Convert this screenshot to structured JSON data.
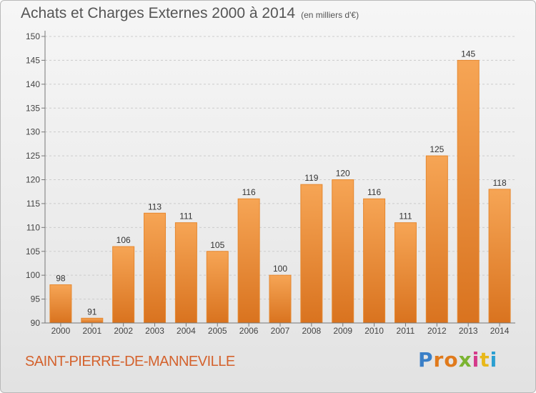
{
  "title": "Achats et Charges Externes 2000 à 2014",
  "subtitle": "(en milliers d'€)",
  "place": "SAINT-PIERRE-DE-MANNEVILLE",
  "logo": {
    "text": "Proxiti",
    "letter_colors": [
      "#3a7fc7",
      "#e07a1c",
      "#e07a1c",
      "#7bb431",
      "#d43a8a",
      "#e8b81a",
      "#2b9fd1"
    ]
  },
  "colors": {
    "bar_top": "#f6a555",
    "bar_bottom": "#d9731f",
    "bar_edge": "#e6882f",
    "axis": "#777777",
    "grid": "#cccccc"
  },
  "chart_data": {
    "type": "bar",
    "title": "Achats et Charges Externes 2000 à 2014",
    "subtitle": "(en milliers d'€)",
    "categories": [
      "2000",
      "2001",
      "2002",
      "2003",
      "2004",
      "2005",
      "2006",
      "2007",
      "2008",
      "2009",
      "2010",
      "2011",
      "2012",
      "2013",
      "2014"
    ],
    "values": [
      98,
      91,
      106,
      113,
      111,
      105,
      116,
      100,
      119,
      120,
      116,
      111,
      125,
      145,
      118
    ],
    "ylim": [
      90,
      150
    ],
    "yticks": [
      90,
      95,
      100,
      105,
      110,
      115,
      120,
      125,
      130,
      135,
      140,
      145,
      150
    ],
    "grid": true,
    "data_labels": true
  }
}
